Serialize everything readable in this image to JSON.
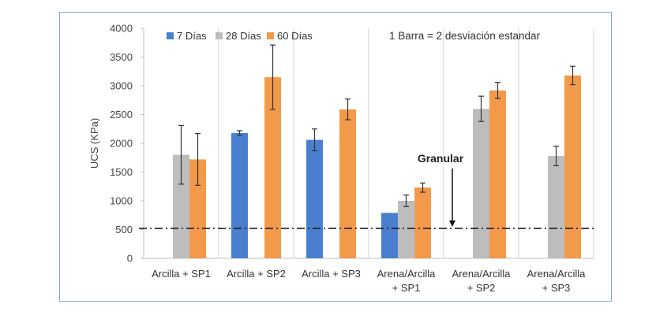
{
  "chart_data": {
    "type": "bar",
    "title": "",
    "xlabel": "",
    "ylabel": "UCS (KPa)",
    "ylim": [
      0,
      4000
    ],
    "yticks": [
      0,
      500,
      1000,
      1500,
      2000,
      2500,
      3000,
      3500,
      4000
    ],
    "grid": "vertical category separators",
    "legend_position": "top-left",
    "categories": [
      [
        "Arcilla + SP1"
      ],
      [
        "Arcilla + SP2"
      ],
      [
        "Arcilla + SP3"
      ],
      [
        "Arena/Arcilla",
        "+ SP1"
      ],
      [
        "Arena/Arcilla",
        "+ SP2"
      ],
      [
        "Arena/Arcilla",
        "+ SP3"
      ]
    ],
    "series": [
      {
        "name": "7 Días",
        "color": "#4a7fd0",
        "values": [
          null,
          2180,
          2060,
          790,
          null,
          null
        ],
        "err": [
          null,
          40,
          190,
          null,
          null,
          null
        ]
      },
      {
        "name": "28 Días",
        "color": "#bdbdbd",
        "values": [
          1800,
          null,
          null,
          1000,
          2600,
          1780
        ],
        "err": [
          510,
          null,
          null,
          100,
          220,
          170
        ]
      },
      {
        "name": "60 Días",
        "color": "#f39a4a",
        "values": [
          1720,
          3150,
          2590,
          1230,
          2920,
          3180
        ],
        "err": [
          450,
          560,
          180,
          80,
          140,
          160
        ]
      }
    ],
    "note": "1 Barra = 2 desviación estandar",
    "reference_line": {
      "value": 520,
      "label": "Granular",
      "style": "dash-dot"
    }
  }
}
